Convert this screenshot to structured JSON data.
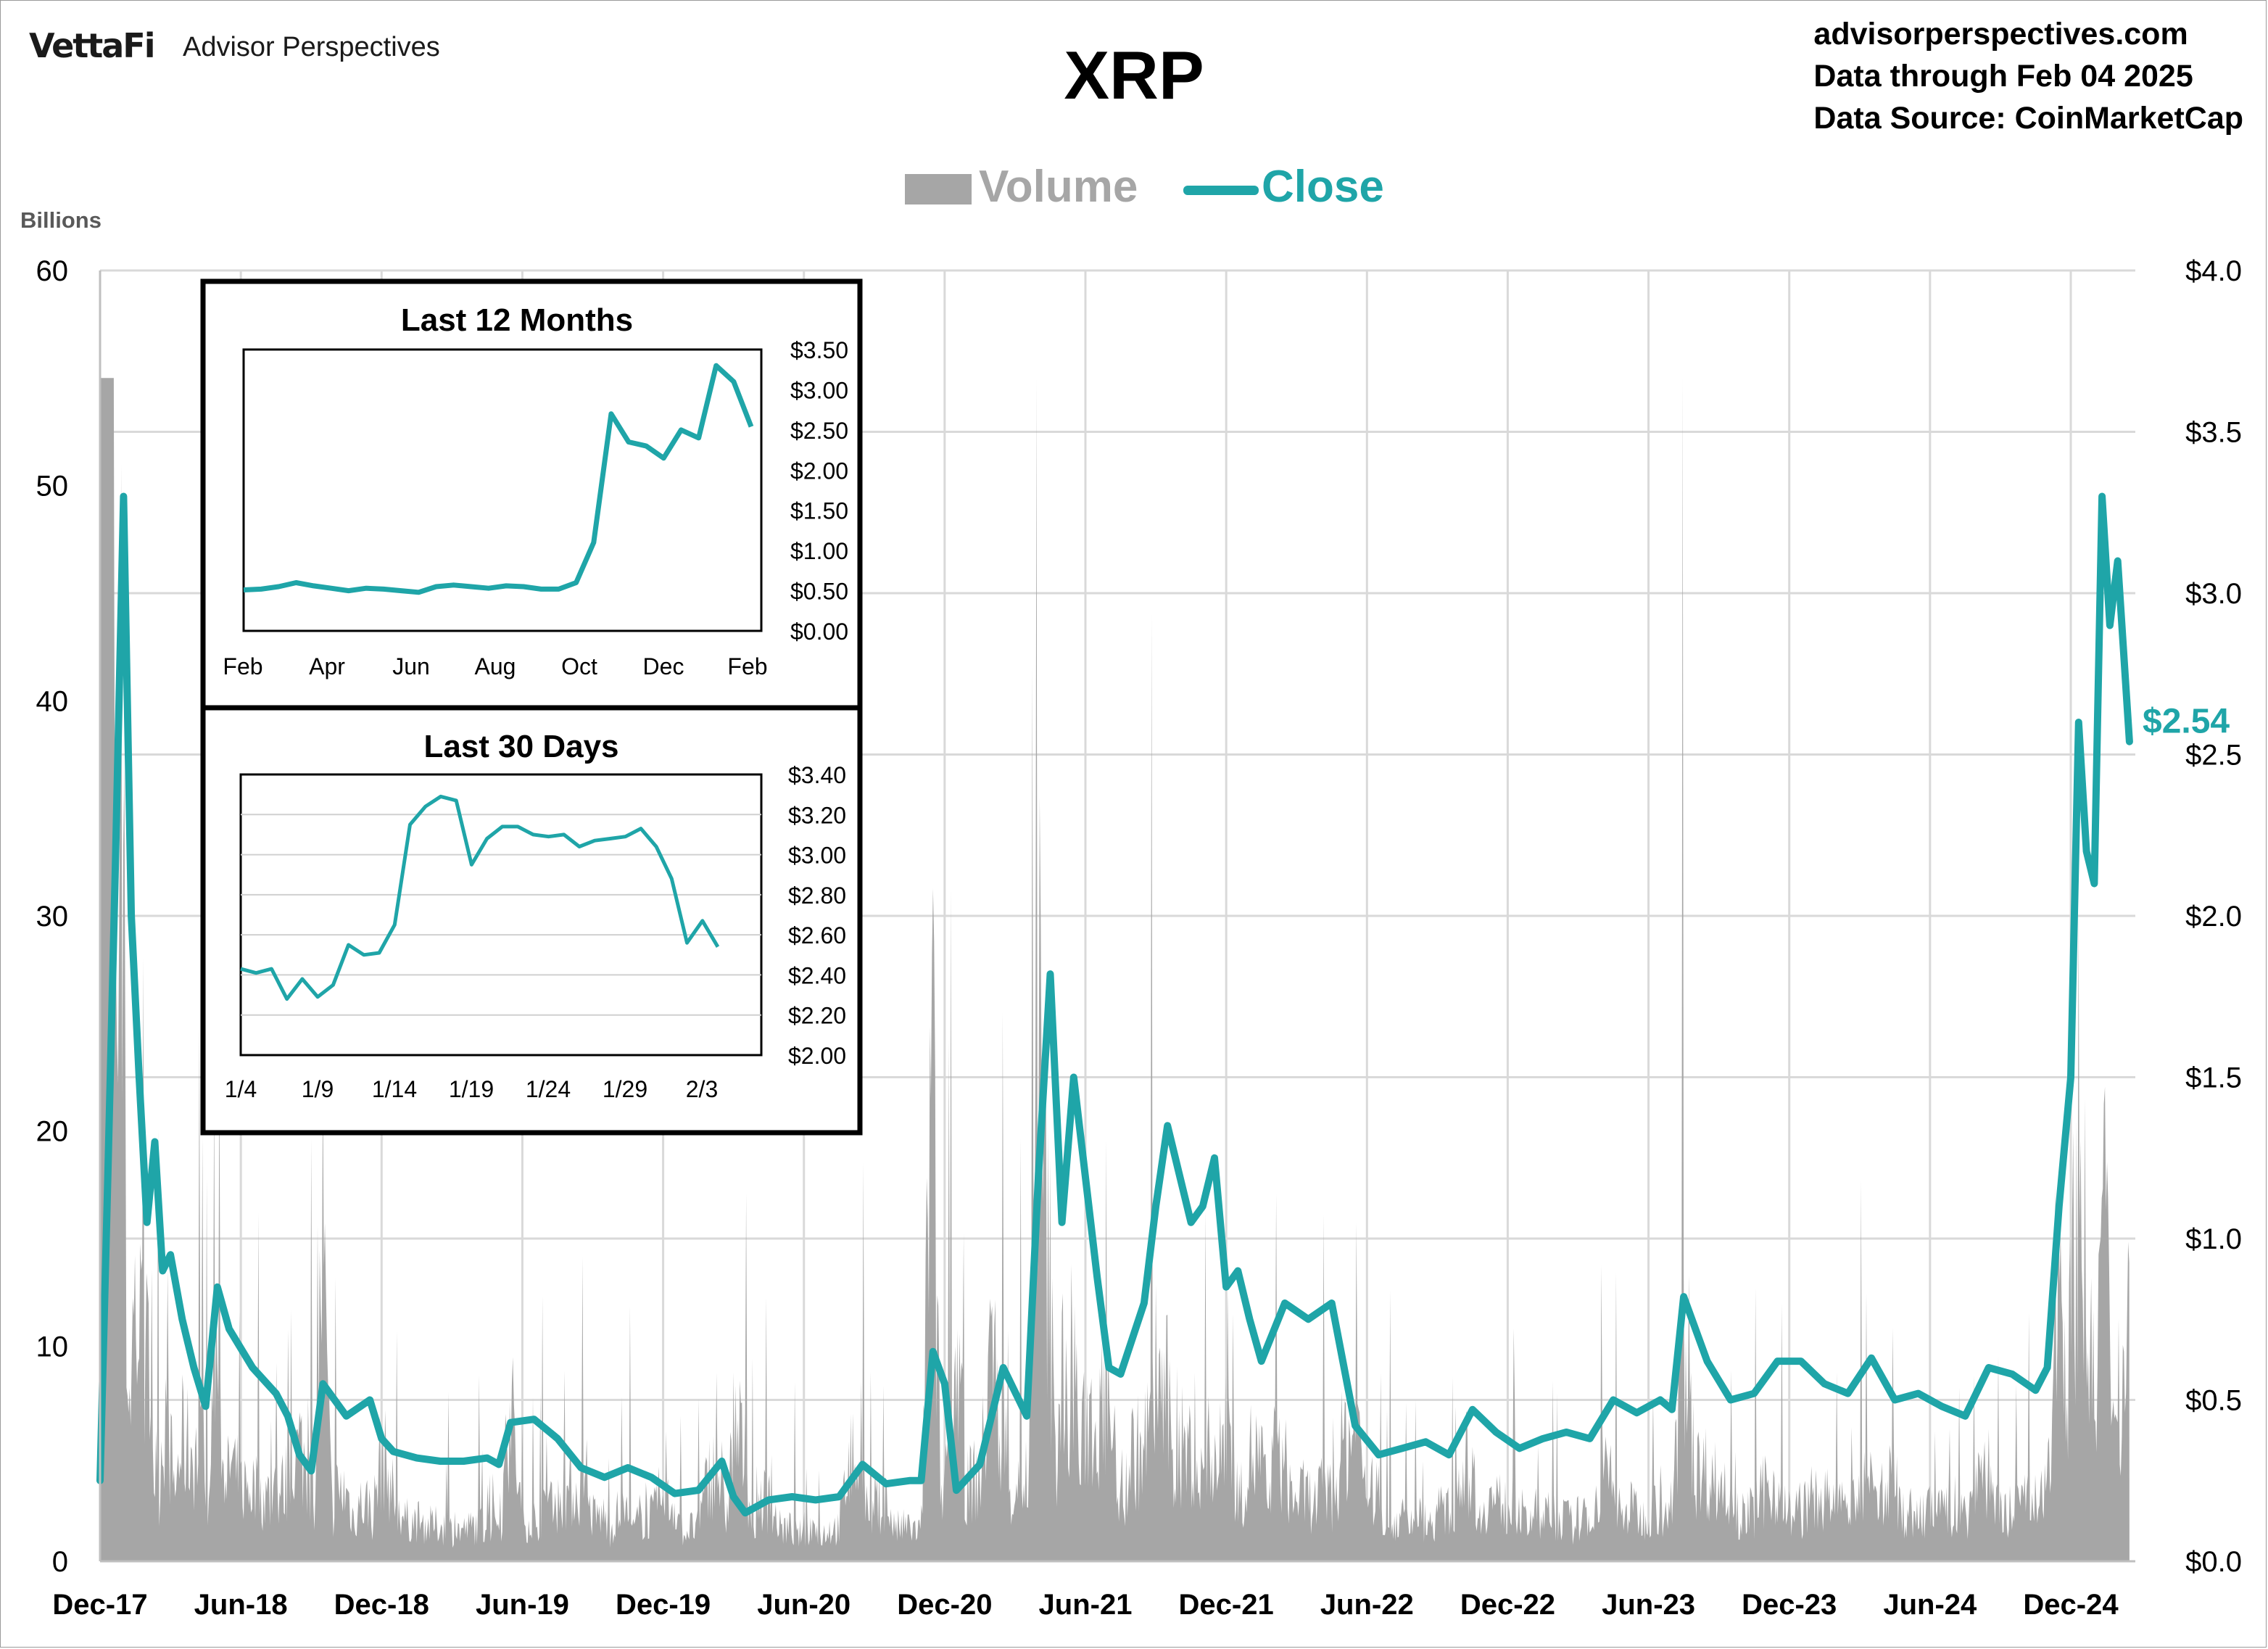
{
  "brand": {
    "logo": "VettaFi",
    "name": "Advisor Perspectives"
  },
  "title": "XRP",
  "source": [
    "advisorperspectives.com",
    "Data through Feb 04 2025",
    "Data Source: CoinMarketCap"
  ],
  "colors": {
    "close": "#1fa5a8",
    "volume": "#a6a6a6",
    "grid": "#d9d9d9"
  },
  "chart_data": [
    {
      "type": "line",
      "subtype": "price-and-volume",
      "title": "XRP",
      "legend": [
        "Volume",
        "Close"
      ],
      "legend_position": "top",
      "y_left_units": "Billions",
      "y_left_ticks": [
        "0",
        "10",
        "20",
        "30",
        "40",
        "50",
        "60"
      ],
      "y_left_range": [
        0,
        60
      ],
      "y_right_ticks": [
        "$0.0",
        "$0.5",
        "$1.0",
        "$1.5",
        "$2.0",
        "$2.5",
        "$3.0",
        "$3.5",
        "$4.0"
      ],
      "y_right_range": [
        0,
        4
      ],
      "x_ticks": [
        "Dec-17",
        "Jun-18",
        "Dec-18",
        "Jun-19",
        "Dec-19",
        "Jun-20",
        "Dec-20",
        "Jun-21",
        "Dec-21",
        "Jun-22",
        "Dec-22",
        "Jun-23",
        "Dec-23",
        "Jun-24",
        "Dec-24"
      ],
      "x_range": [
        "2017-12",
        "2025-02"
      ],
      "grid": true,
      "last_close_label": "$2.54",
      "close_series": [
        [
          "2017-12",
          0.25
        ],
        [
          "2017-12",
          1.2
        ],
        [
          "2017-12",
          2.2
        ],
        [
          "2018-01",
          3.3
        ],
        [
          "2018-01",
          2.0
        ],
        [
          "2018-01",
          1.5
        ],
        [
          "2018-02",
          1.05
        ],
        [
          "2018-02",
          1.3
        ],
        [
          "2018-02",
          0.9
        ],
        [
          "2018-03",
          0.95
        ],
        [
          "2018-03",
          0.75
        ],
        [
          "2018-04",
          0.6
        ],
        [
          "2018-04",
          0.48
        ],
        [
          "2018-05",
          0.85
        ],
        [
          "2018-05",
          0.72
        ],
        [
          "2018-06",
          0.6
        ],
        [
          "2018-07",
          0.52
        ],
        [
          "2018-08",
          0.45
        ],
        [
          "2018-08",
          0.33
        ],
        [
          "2018-09",
          0.28
        ],
        [
          "2018-09",
          0.55
        ],
        [
          "2018-10",
          0.45
        ],
        [
          "2018-11",
          0.5
        ],
        [
          "2018-12",
          0.38
        ],
        [
          "2018-12",
          0.34
        ],
        [
          "2019-01",
          0.32
        ],
        [
          "2019-02",
          0.31
        ],
        [
          "2019-03",
          0.31
        ],
        [
          "2019-04",
          0.32
        ],
        [
          "2019-05",
          0.3
        ],
        [
          "2019-05",
          0.43
        ],
        [
          "2019-06",
          0.44
        ],
        [
          "2019-07",
          0.38
        ],
        [
          "2019-08",
          0.29
        ],
        [
          "2019-09",
          0.26
        ],
        [
          "2019-10",
          0.29
        ],
        [
          "2019-11",
          0.26
        ],
        [
          "2019-12",
          0.21
        ],
        [
          "2020-01",
          0.22
        ],
        [
          "2020-02",
          0.31
        ],
        [
          "2020-03",
          0.2
        ],
        [
          "2020-03",
          0.15
        ],
        [
          "2020-04",
          0.19
        ],
        [
          "2020-05",
          0.2
        ],
        [
          "2020-06",
          0.19
        ],
        [
          "2020-07",
          0.2
        ],
        [
          "2020-08",
          0.3
        ],
        [
          "2020-09",
          0.24
        ],
        [
          "2020-10",
          0.25
        ],
        [
          "2020-11",
          0.25
        ],
        [
          "2020-11",
          0.65
        ],
        [
          "2020-12",
          0.55
        ],
        [
          "2020-12",
          0.22
        ],
        [
          "2021-01",
          0.3
        ],
        [
          "2021-02",
          0.6
        ],
        [
          "2021-03",
          0.45
        ],
        [
          "2021-04",
          1.2
        ],
        [
          "2021-04",
          1.82
        ],
        [
          "2021-05",
          1.05
        ],
        [
          "2021-05",
          1.5
        ],
        [
          "2021-06",
          0.88
        ],
        [
          "2021-07",
          0.6
        ],
        [
          "2021-07",
          0.58
        ],
        [
          "2021-08",
          0.8
        ],
        [
          "2021-09",
          1.1
        ],
        [
          "2021-09",
          1.35
        ],
        [
          "2021-10",
          1.05
        ],
        [
          "2021-11",
          1.1
        ],
        [
          "2021-11",
          1.25
        ],
        [
          "2021-12",
          0.85
        ],
        [
          "2021-12",
          0.9
        ],
        [
          "2022-01",
          0.75
        ],
        [
          "2022-01",
          0.62
        ],
        [
          "2022-02",
          0.8
        ],
        [
          "2022-03",
          0.75
        ],
        [
          "2022-04",
          0.8
        ],
        [
          "2022-05",
          0.42
        ],
        [
          "2022-06",
          0.33
        ],
        [
          "2022-07",
          0.35
        ],
        [
          "2022-08",
          0.37
        ],
        [
          "2022-09",
          0.33
        ],
        [
          "2022-10",
          0.47
        ],
        [
          "2022-11",
          0.4
        ],
        [
          "2022-12",
          0.35
        ],
        [
          "2023-01",
          0.38
        ],
        [
          "2023-02",
          0.4
        ],
        [
          "2023-03",
          0.38
        ],
        [
          "2023-04",
          0.5
        ],
        [
          "2023-05",
          0.46
        ],
        [
          "2023-06",
          0.5
        ],
        [
          "2023-07",
          0.47
        ],
        [
          "2023-07",
          0.82
        ],
        [
          "2023-08",
          0.62
        ],
        [
          "2023-09",
          0.5
        ],
        [
          "2023-10",
          0.52
        ],
        [
          "2023-11",
          0.62
        ],
        [
          "2023-12",
          0.62
        ],
        [
          "2024-01",
          0.55
        ],
        [
          "2024-02",
          0.52
        ],
        [
          "2024-03",
          0.63
        ],
        [
          "2024-04",
          0.5
        ],
        [
          "2024-05",
          0.52
        ],
        [
          "2024-06",
          0.48
        ],
        [
          "2024-07",
          0.45
        ],
        [
          "2024-08",
          0.6
        ],
        [
          "2024-09",
          0.58
        ],
        [
          "2024-10",
          0.53
        ],
        [
          "2024-11",
          0.6
        ],
        [
          "2024-11",
          1.1
        ],
        [
          "2024-12",
          1.5
        ],
        [
          "2024-12",
          2.6
        ],
        [
          "2024-12",
          2.2
        ],
        [
          "2025-01",
          2.1
        ],
        [
          "2025-01",
          3.3
        ],
        [
          "2025-01",
          2.9
        ],
        [
          "2025-02",
          3.1
        ],
        [
          "2025-02",
          2.54
        ]
      ]
    },
    {
      "type": "line",
      "title": "Last 12 Months",
      "x_ticks": [
        "Feb",
        "Apr",
        "Jun",
        "Aug",
        "Oct",
        "Dec",
        "Feb"
      ],
      "y_ticks": [
        "$0.00",
        "$0.50",
        "$1.00",
        "$1.50",
        "$2.00",
        "$2.50",
        "$3.00",
        "$3.50"
      ],
      "y_range": [
        0,
        3.5
      ],
      "values": [
        0.51,
        0.52,
        0.55,
        0.6,
        0.56,
        0.53,
        0.5,
        0.53,
        0.52,
        0.5,
        0.48,
        0.55,
        0.57,
        0.55,
        0.53,
        0.56,
        0.55,
        0.52,
        0.52,
        0.6,
        1.1,
        2.7,
        2.35,
        2.3,
        2.15,
        2.5,
        2.4,
        3.3,
        3.1,
        2.54
      ]
    },
    {
      "type": "line",
      "title": "Last 30 Days",
      "x_ticks": [
        "1/4",
        "1/9",
        "1/14",
        "1/19",
        "1/24",
        "1/29",
        "2/3"
      ],
      "y_ticks": [
        "$2.00",
        "$2.20",
        "$2.40",
        "$2.60",
        "$2.80",
        "$3.00",
        "$3.20",
        "$3.40"
      ],
      "y_range": [
        2.0,
        3.4
      ],
      "values": [
        2.43,
        2.41,
        2.43,
        2.28,
        2.38,
        2.29,
        2.35,
        2.55,
        2.5,
        2.51,
        2.65,
        3.15,
        3.24,
        3.29,
        3.27,
        2.95,
        3.08,
        3.14,
        3.14,
        3.1,
        3.09,
        3.1,
        3.04,
        3.07,
        3.08,
        3.09,
        3.13,
        3.04,
        2.88,
        2.56,
        2.67,
        2.54
      ]
    }
  ]
}
